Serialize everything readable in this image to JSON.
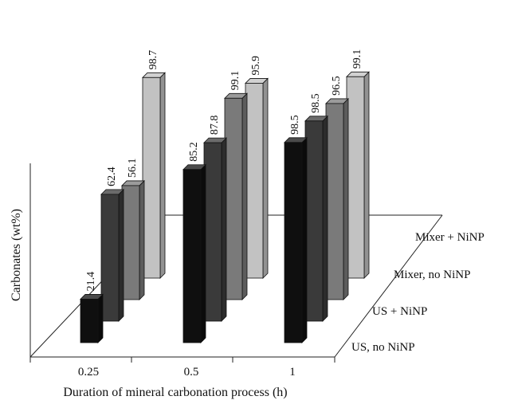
{
  "chart_data": {
    "type": "bar",
    "variant": "3d-grouped",
    "title": "",
    "xlabel": "Duration of mineral carbonation process (h)",
    "ylabel": "Carbonates (wt%)",
    "ylim": [
      0,
      100
    ],
    "grid": false,
    "legend_position": "right-depth-axis",
    "categories": [
      "0.25",
      "0.5",
      "1"
    ],
    "series": [
      {
        "name": "US, no NiNP",
        "color": "#0f0f0f",
        "values": [
          21.4,
          85.2,
          98.5
        ]
      },
      {
        "name": "US + NiNP",
        "color": "#3a3a3a",
        "values": [
          62.4,
          87.8,
          98.5
        ]
      },
      {
        "name": "Mixer, no NiNP",
        "color": "#7a7a7a",
        "values": [
          56.1,
          99.1,
          96.5
        ]
      },
      {
        "name": "Mixer + NiNP",
        "color": "#c2c2c2",
        "values": [
          98.7,
          95.9,
          99.1
        ]
      }
    ]
  }
}
